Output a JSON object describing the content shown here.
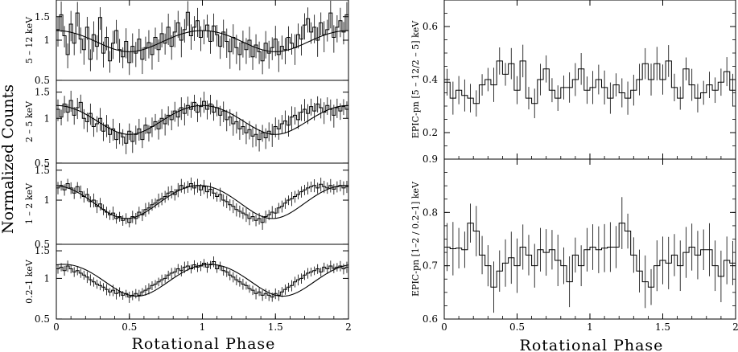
{
  "figure": {
    "left_ylabel": "Normalized Counts",
    "left_xlabel": "Rotational Phase",
    "right_xlabel": "Rotational Phase"
  },
  "chart_data": [
    {
      "id": "left",
      "type": "line",
      "xlim": [
        0,
        2
      ],
      "xticks": [
        "0",
        "0.5",
        "1",
        "1.5",
        "2"
      ],
      "bands": [
        {
          "label": "5 – 12 keV",
          "yscale": "log",
          "ylim": [
            0.5,
            2.0
          ],
          "yticks": [
            "0.5",
            "1",
            "1.5"
          ],
          "model": {
            "mean": 1.0,
            "amp": 0.18,
            "peak_phase": 1.0
          },
          "values": [
            1.2,
            1.55,
            1.08,
            0.78,
            1.32,
            0.95,
            1.6,
            1.02,
            0.85,
            1.25,
            0.72,
            1.1,
            0.9,
            1.48,
            0.8,
            1.05,
            0.7,
            0.95,
            1.18,
            0.85,
            0.75,
            0.98,
            0.68,
            0.9,
            0.8,
            1.02,
            0.72,
            0.88,
            0.96,
            0.78,
            1.05,
            0.85,
            1.12,
            0.95,
            1.25,
            0.9,
            1.15,
            1.35,
            1.0,
            1.2,
            1.62,
            1.08,
            1.25,
            1.4,
            1.05,
            1.18,
            1.3,
            0.98,
            1.28,
            1.1,
            0.9,
            1.15,
            0.98,
            0.82,
            1.05,
            0.88,
            0.78,
            0.96,
            0.85,
            1.0,
            0.75,
            0.92,
            0.82,
            0.7,
            0.95,
            0.8,
            0.88,
            1.02,
            0.78,
            0.9,
            0.85,
            1.05,
            0.95,
            0.88,
            1.1,
            1.02,
            1.3,
            1.45,
            1.15,
            1.25,
            1.0,
            1.35,
            1.1,
            1.2,
            1.6,
            1.05,
            1.25,
            1.4,
            1.15,
            1.55
          ]
        },
        {
          "label": "2 – 5 keV",
          "yscale": "log",
          "ylim": [
            0.5,
            1.8
          ],
          "yticks": [
            "0.5",
            "1",
            "1.5"
          ],
          "model": {
            "mean": 1.0,
            "amp": 0.22,
            "peak_phase": 1.0
          },
          "values": [
            1.15,
            1.02,
            1.25,
            1.1,
            1.32,
            1.05,
            1.18,
            1.28,
            1.0,
            0.95,
            1.08,
            0.88,
            0.92,
            1.0,
            0.82,
            0.9,
            0.78,
            0.85,
            0.72,
            0.8,
            0.75,
            0.68,
            0.82,
            0.7,
            0.78,
            0.85,
            0.72,
            0.9,
            0.8,
            0.88,
            0.95,
            0.85,
            1.0,
            0.92,
            1.05,
            0.98,
            1.12,
            1.02,
            1.18,
            1.08,
            1.22,
            1.15,
            1.28,
            1.1,
            1.2,
            1.3,
            1.15,
            1.25,
            1.1,
            1.18,
            1.05,
            1.12,
            0.98,
            1.02,
            0.92,
            0.95,
            0.85,
            0.88,
            0.8,
            0.84,
            0.76,
            0.78,
            0.72,
            0.8,
            0.74,
            0.82,
            0.78,
            0.88,
            0.85,
            0.92,
            0.96,
            0.9,
            1.02,
            1.05,
            0.98,
            1.1,
            1.15,
            1.08,
            1.2,
            1.12,
            1.25,
            1.18,
            1.1,
            1.22,
            1.15,
            1.05,
            1.18,
            1.12,
            1.2,
            1.15
          ]
        },
        {
          "label": "1 – 2 keV",
          "yscale": "log",
          "ylim": [
            0.55,
            1.65
          ],
          "yticks": [
            "0.5",
            "1",
            "1.5"
          ],
          "model": {
            "mean": 1.0,
            "amp": 0.22,
            "peak_phase": 0.98
          },
          "values": [
            1.18,
            1.22,
            1.15,
            1.25,
            1.18,
            1.1,
            1.2,
            1.12,
            1.05,
            1.08,
            0.98,
            1.0,
            0.92,
            0.95,
            0.88,
            0.85,
            0.82,
            0.84,
            0.78,
            0.8,
            0.76,
            0.78,
            0.74,
            0.8,
            0.78,
            0.85,
            0.82,
            0.88,
            0.9,
            0.94,
            0.96,
            1.0,
            1.02,
            1.05,
            1.1,
            1.12,
            1.08,
            1.15,
            1.22,
            1.18,
            1.2,
            1.25,
            1.18,
            1.22,
            1.15,
            1.2,
            1.12,
            1.16,
            1.1,
            1.05,
            1.08,
            1.0,
            0.98,
            0.94,
            0.92,
            0.88,
            0.86,
            0.84,
            0.82,
            0.78,
            0.8,
            0.76,
            0.78,
            0.74,
            0.8,
            0.82,
            0.85,
            0.84,
            0.9,
            0.92,
            0.96,
            1.0,
            1.02,
            1.05,
            1.08,
            1.12,
            1.15,
            1.18,
            1.2,
            1.22,
            1.18,
            1.24,
            1.2,
            1.18,
            1.22,
            1.16,
            1.2,
            1.22,
            1.18,
            1.2
          ]
        },
        {
          "label": "0.2–1 keV",
          "yscale": "log",
          "ylim": [
            0.55,
            1.65
          ],
          "yticks": [
            "0.5",
            "1",
            "1.5"
          ],
          "model": {
            "mean": 1.0,
            "amp": 0.23,
            "peak_phase": 1.05
          },
          "values": [
            1.15,
            1.18,
            1.12,
            1.2,
            1.15,
            1.1,
            1.12,
            1.08,
            1.05,
            1.02,
            0.98,
            0.95,
            0.92,
            0.9,
            0.88,
            0.85,
            0.82,
            0.84,
            0.8,
            0.82,
            0.78,
            0.8,
            0.76,
            0.78,
            0.8,
            0.78,
            0.82,
            0.84,
            0.86,
            0.9,
            0.92,
            0.95,
            0.98,
            1.0,
            1.05,
            1.08,
            1.1,
            1.15,
            1.12,
            1.18,
            1.2,
            1.15,
            1.22,
            1.18,
            1.2,
            1.25,
            1.18,
            1.22,
            1.28,
            1.15,
            1.2,
            1.12,
            1.1,
            1.05,
            1.02,
            0.98,
            0.95,
            0.92,
            0.9,
            0.86,
            0.84,
            0.8,
            0.82,
            0.78,
            0.8,
            0.78,
            0.76,
            0.8,
            0.78,
            0.82,
            0.85,
            0.88,
            0.9,
            0.95,
            0.98,
            1.0,
            1.05,
            1.08,
            1.1,
            1.12,
            1.15,
            1.1,
            1.18,
            1.15,
            1.2,
            1.16,
            1.18,
            1.2,
            1.15,
            1.18
          ]
        }
      ]
    },
    {
      "id": "right-top",
      "type": "line",
      "ylabel": "EPIC-pn [5 – 12/2 – 5] keV",
      "xlim": [
        0,
        2
      ],
      "ylim": [
        0.1,
        0.7
      ],
      "yticks": [
        "0.2",
        "0.4",
        "0.6"
      ],
      "values": [
        0.39,
        0.33,
        0.36,
        0.34,
        0.33,
        0.31,
        0.38,
        0.4,
        0.38,
        0.47,
        0.42,
        0.46,
        0.36,
        0.47,
        0.33,
        0.31,
        0.4,
        0.44,
        0.36,
        0.33,
        0.37,
        0.37,
        0.4,
        0.44,
        0.36,
        0.37,
        0.4,
        0.37,
        0.33,
        0.38,
        0.35,
        0.33,
        0.36,
        0.4,
        0.46,
        0.4,
        0.46,
        0.4,
        0.47,
        0.37,
        0.33,
        0.44,
        0.38,
        0.33,
        0.35,
        0.38,
        0.36,
        0.39,
        0.43,
        0.36
      ]
    },
    {
      "id": "right-bottom",
      "type": "line",
      "ylabel": "EPIC-pn [1–2 / 0.2–1] keV",
      "xlim": [
        0,
        2
      ],
      "ylim": [
        0.6,
        0.9
      ],
      "yticks": [
        "0.6",
        "0.7",
        "0.8",
        "0.9"
      ],
      "xticks": [
        "0",
        "0.5",
        "1",
        "1.5",
        "2"
      ],
      "values": [
        0.735,
        0.732,
        0.733,
        0.73,
        0.78,
        0.765,
        0.72,
        0.7,
        0.66,
        0.69,
        0.705,
        0.715,
        0.7,
        0.735,
        0.72,
        0.7,
        0.73,
        0.725,
        0.73,
        0.71,
        0.7,
        0.67,
        0.72,
        0.7,
        0.73,
        0.735,
        0.73,
        0.733,
        0.735,
        0.735,
        0.78,
        0.765,
        0.72,
        0.69,
        0.67,
        0.66,
        0.7,
        0.71,
        0.705,
        0.72,
        0.7,
        0.725,
        0.735,
        0.72,
        0.73,
        0.73,
        0.7,
        0.68,
        0.71,
        0.705
      ]
    }
  ]
}
